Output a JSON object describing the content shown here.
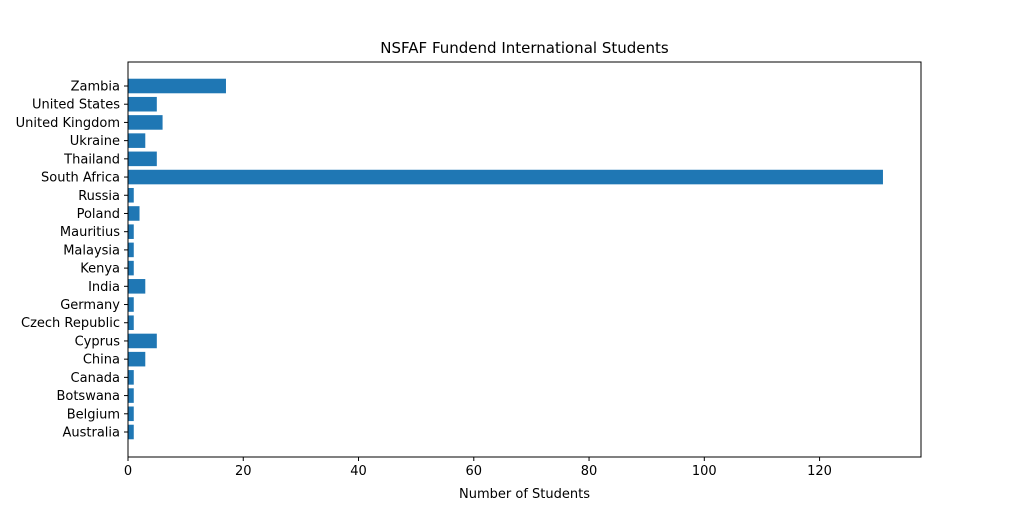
{
  "chart_data": {
    "type": "bar",
    "orientation": "horizontal",
    "title": "NSFAF Fundend International Students",
    "xlabel": "Number of Students",
    "ylabel": "",
    "xlim": [
      0,
      137.6
    ],
    "xticks": [
      0,
      20,
      40,
      60,
      80,
      100,
      120
    ],
    "grid": false,
    "categories": [
      "Australia",
      "Belgium",
      "Botswana",
      "Canada",
      "China",
      "Cyprus",
      "Czech Republic",
      "Germany",
      "India",
      "Kenya",
      "Malaysia",
      "Mauritius",
      "Poland",
      "Russia",
      "South Africa",
      "Thailand",
      "Ukraine",
      "United Kingdom",
      "United States",
      "Zambia"
    ],
    "values": [
      1,
      1,
      1,
      1,
      3,
      5,
      1,
      1,
      3,
      1,
      1,
      1,
      2,
      1,
      131,
      5,
      3,
      6,
      5,
      17
    ],
    "bar_color": "#1f77b4"
  }
}
